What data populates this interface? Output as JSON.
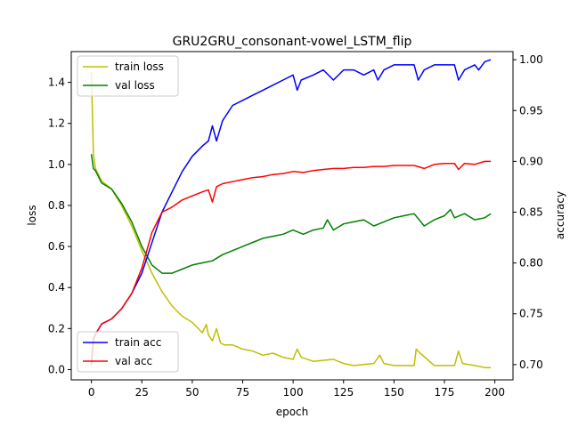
{
  "chart_data": {
    "type": "line",
    "title": "GRU2GRU_consonant-vowel_LSTM_flip",
    "xlabel": "epoch",
    "ylabel_left": "loss",
    "ylabel_right": "accuracy",
    "xlim": [
      -10,
      209
    ],
    "ylim_left": [
      -0.05,
      1.55
    ],
    "ylim_right": [
      0.685,
      1.008
    ],
    "x_ticks": [
      0,
      25,
      50,
      75,
      100,
      125,
      150,
      175,
      200
    ],
    "y_left_ticks": [
      0.0,
      0.2,
      0.4,
      0.6,
      0.8,
      1.0,
      1.2,
      1.4
    ],
    "y_right_ticks": [
      0.7,
      0.75,
      0.8,
      0.85,
      0.9,
      0.95,
      1.0
    ],
    "y_left_tick_labels": [
      "0.0",
      "0.2",
      "0.4",
      "0.6",
      "0.8",
      "1.0",
      "1.2",
      "1.4"
    ],
    "y_right_tick_labels": [
      "0.70",
      "0.75",
      "0.80",
      "0.85",
      "0.90",
      "0.95",
      "1.00"
    ],
    "grid": false,
    "legend_left_axis": {
      "placement": "upper-left",
      "entries": [
        "train loss",
        "val loss"
      ]
    },
    "legend_right_axis": {
      "placement": "lower-left",
      "entries": [
        "train acc",
        "val acc"
      ]
    },
    "series": [
      {
        "name": "train loss",
        "axis": "left",
        "color": "#bfbf00",
        "x": [
          0,
          1,
          2,
          5,
          10,
          15,
          20,
          25,
          30,
          35,
          40,
          45,
          50,
          55,
          57,
          58,
          60,
          62,
          64,
          66,
          70,
          75,
          80,
          85,
          90,
          95,
          100,
          102,
          104,
          110,
          120,
          125,
          130,
          140,
          143,
          145,
          150,
          160,
          161,
          163,
          170,
          180,
          182,
          184,
          190,
          195,
          198
        ],
        "y": [
          1.45,
          1.05,
          0.98,
          0.92,
          0.88,
          0.8,
          0.7,
          0.58,
          0.47,
          0.38,
          0.31,
          0.26,
          0.23,
          0.18,
          0.22,
          0.17,
          0.14,
          0.2,
          0.13,
          0.12,
          0.12,
          0.1,
          0.09,
          0.07,
          0.08,
          0.06,
          0.05,
          0.1,
          0.06,
          0.04,
          0.05,
          0.03,
          0.02,
          0.03,
          0.07,
          0.03,
          0.02,
          0.02,
          0.1,
          0.08,
          0.02,
          0.02,
          0.09,
          0.03,
          0.02,
          0.01,
          0.01
        ]
      },
      {
        "name": "val loss",
        "axis": "left",
        "color": "#008000",
        "x": [
          0,
          1,
          2,
          5,
          10,
          15,
          20,
          25,
          30,
          35,
          40,
          45,
          50,
          55,
          60,
          65,
          70,
          75,
          80,
          85,
          90,
          95,
          100,
          105,
          110,
          115,
          117,
          120,
          125,
          130,
          135,
          140,
          145,
          150,
          155,
          160,
          165,
          170,
          175,
          178,
          180,
          185,
          190,
          195,
          198
        ],
        "y": [
          1.05,
          0.98,
          0.97,
          0.91,
          0.88,
          0.81,
          0.72,
          0.6,
          0.51,
          0.47,
          0.47,
          0.49,
          0.51,
          0.52,
          0.53,
          0.56,
          0.58,
          0.6,
          0.62,
          0.64,
          0.65,
          0.66,
          0.68,
          0.66,
          0.68,
          0.69,
          0.73,
          0.68,
          0.71,
          0.72,
          0.73,
          0.7,
          0.72,
          0.74,
          0.75,
          0.76,
          0.7,
          0.73,
          0.75,
          0.78,
          0.74,
          0.76,
          0.73,
          0.74,
          0.76
        ]
      },
      {
        "name": "train acc",
        "axis": "right",
        "color": "#0000ff",
        "x": [
          0,
          1,
          2,
          5,
          10,
          15,
          20,
          25,
          30,
          35,
          40,
          45,
          50,
          55,
          58,
          60,
          62,
          65,
          70,
          75,
          80,
          85,
          90,
          95,
          100,
          102,
          104,
          110,
          115,
          120,
          125,
          130,
          135,
          140,
          142,
          145,
          150,
          155,
          160,
          162,
          165,
          170,
          175,
          180,
          182,
          185,
          190,
          192,
          195,
          198
        ],
        "y": [
          0.7,
          0.725,
          0.73,
          0.74,
          0.745,
          0.755,
          0.77,
          0.79,
          0.82,
          0.85,
          0.87,
          0.89,
          0.905,
          0.915,
          0.92,
          0.935,
          0.92,
          0.94,
          0.955,
          0.96,
          0.965,
          0.97,
          0.975,
          0.98,
          0.985,
          0.97,
          0.98,
          0.985,
          0.99,
          0.98,
          0.99,
          0.99,
          0.985,
          0.99,
          0.98,
          0.99,
          0.995,
          0.995,
          0.995,
          0.98,
          0.99,
          0.995,
          0.995,
          0.995,
          0.98,
          0.99,
          0.995,
          0.99,
          0.998,
          1.0
        ]
      },
      {
        "name": "val acc",
        "axis": "right",
        "color": "#ff0000",
        "x": [
          0,
          1,
          2,
          5,
          10,
          15,
          20,
          25,
          30,
          35,
          40,
          45,
          50,
          55,
          58,
          60,
          62,
          65,
          70,
          75,
          80,
          85,
          90,
          95,
          100,
          105,
          110,
          115,
          120,
          125,
          130,
          135,
          140,
          145,
          150,
          155,
          160,
          165,
          170,
          175,
          180,
          182,
          185,
          190,
          195,
          198
        ],
        "y": [
          0.7,
          0.725,
          0.73,
          0.74,
          0.745,
          0.755,
          0.77,
          0.795,
          0.83,
          0.85,
          0.855,
          0.862,
          0.866,
          0.87,
          0.872,
          0.86,
          0.875,
          0.878,
          0.88,
          0.882,
          0.884,
          0.885,
          0.887,
          0.888,
          0.89,
          0.889,
          0.891,
          0.892,
          0.893,
          0.893,
          0.894,
          0.894,
          0.895,
          0.895,
          0.896,
          0.896,
          0.896,
          0.893,
          0.897,
          0.898,
          0.898,
          0.892,
          0.898,
          0.897,
          0.9,
          0.9
        ]
      }
    ]
  }
}
